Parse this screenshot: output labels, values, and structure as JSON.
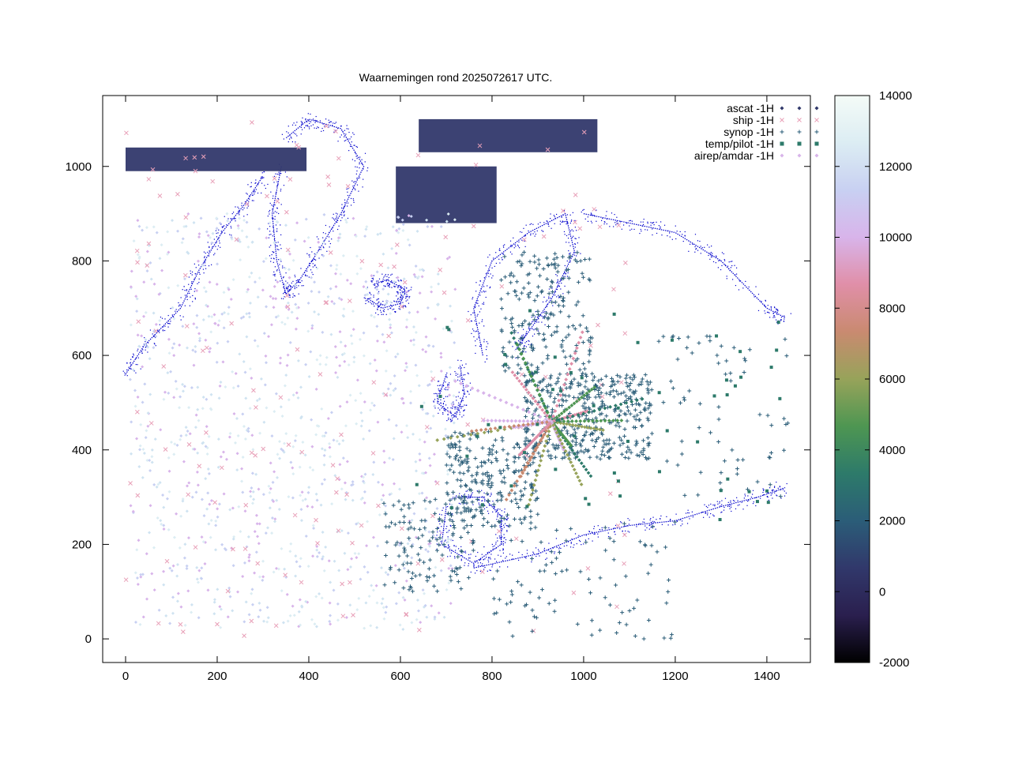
{
  "chart_data": {
    "type": "scatter",
    "title": "Waarnemingen rond 2025072617 UTC.",
    "xlabel": "",
    "ylabel": "",
    "xlim": [
      -50,
      1495
    ],
    "ylim": [
      -50,
      1150
    ],
    "xticks": [
      0,
      200,
      400,
      600,
      800,
      1000,
      1200,
      1400
    ],
    "yticks": [
      0,
      200,
      400,
      600,
      800,
      1000
    ],
    "grid": false,
    "legend_position": "top-right",
    "colorbar": {
      "min": -2000,
      "max": 14000,
      "ticks": [
        -2000,
        0,
        2000,
        4000,
        6000,
        8000,
        10000,
        12000,
        14000
      ],
      "palette": [
        "#000000",
        "#2a1f4e",
        "#31386b",
        "#2b5d78",
        "#2d7a6a",
        "#4e9652",
        "#97a35a",
        "#c98a70",
        "#e08fa8",
        "#d8b4ea",
        "#c8d0f2",
        "#dcedf3",
        "#f4fbf7"
      ]
    },
    "series": [
      {
        "name": "ascat -1H",
        "marker": "diamond",
        "color": "#31386b",
        "swaths": [
          {
            "x": [
              0,
              395
            ],
            "y": [
              990,
              1040
            ],
            "value": 0
          },
          {
            "x": [
              590,
              810
            ],
            "y": [
              880,
              1000
            ],
            "value": 0
          },
          {
            "x": [
              640,
              1030
            ],
            "y": [
              1030,
              1100
            ],
            "value": 0
          }
        ]
      },
      {
        "name": "ship -1H",
        "marker": "x",
        "color": "#e8a0b8"
      },
      {
        "name": "synop -1H",
        "marker": "plus",
        "color": "#2b5d78"
      },
      {
        "name": "temp/pilot -1H",
        "marker": "square",
        "color": "#2d7a6a"
      },
      {
        "name": "airep/amdar -1H",
        "marker": "diamond",
        "color": "#d8b4ea"
      }
    ],
    "coastline_color": "#0000cc",
    "regions": {
      "synop_clusters": [
        {
          "x": [
            870,
            1150
          ],
          "y": [
            380,
            560
          ],
          "n": 420
        },
        {
          "x": [
            700,
            900
          ],
          "y": [
            230,
            440
          ],
          "n": 240
        },
        {
          "x": [
            820,
            1020
          ],
          "y": [
            560,
            820
          ],
          "n": 200
        },
        {
          "x": [
            560,
            760
          ],
          "y": [
            100,
            300
          ],
          "n": 120
        },
        {
          "x": [
            800,
            1200
          ],
          "y": [
            0,
            250
          ],
          "n": 90
        },
        {
          "x": [
            1150,
            1450
          ],
          "y": [
            300,
            650
          ],
          "n": 70
        }
      ],
      "ocean_swirl": {
        "x": [
          10,
          720
        ],
        "y": [
          20,
          900
        ],
        "n": 1100
      },
      "ship_points": {
        "x": [
          0,
          1100
        ],
        "y": [
          0,
          1100
        ],
        "n": 170
      },
      "temp_points": {
        "x": [
          600,
          1450
        ],
        "y": [
          250,
          700
        ],
        "n": 60
      }
    }
  }
}
